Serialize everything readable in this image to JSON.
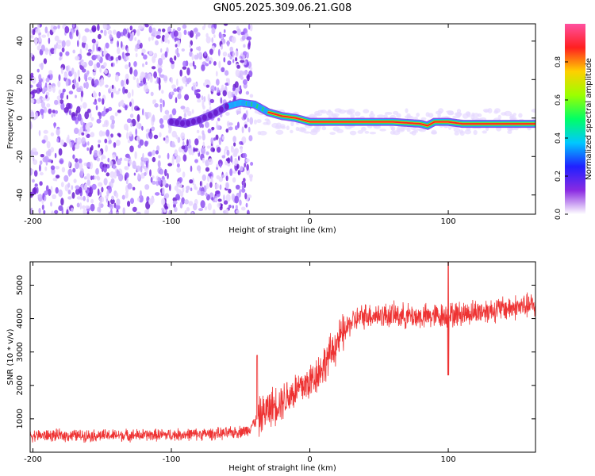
{
  "title": "GN05.2025.309.06.21.G08",
  "chart_data": [
    {
      "type": "heatmap",
      "title": "GN05.2025.309.06.21.G08",
      "xlabel": "Height of straight line (km)",
      "ylabel": "Frequency (Hz)",
      "xlim": [
        -202,
        163
      ],
      "ylim": [
        -50,
        49
      ],
      "xticks": [
        -200,
        -100,
        0,
        100
      ],
      "yticks": [
        -40,
        -20,
        0,
        20,
        40
      ],
      "colorbar": {
        "label": "Normalized spectral amplitude",
        "range": [
          0,
          1
        ],
        "ticks": [
          "0.0",
          "0.2",
          "0.4",
          "0.6",
          "0.8"
        ],
        "colors": [
          "#ffffff",
          "#8a2be2",
          "#2020ff",
          "#00c8ff",
          "#00ff66",
          "#9bff00",
          "#ffd000",
          "#ff2020",
          "#ff50a0"
        ]
      },
      "ridge": {
        "description_points_km_hz": [
          [
            -100,
            -2
          ],
          [
            -90,
            -3
          ],
          [
            -80,
            -1
          ],
          [
            -70,
            2
          ],
          [
            -60,
            6
          ],
          [
            -50,
            8
          ],
          [
            -40,
            7
          ],
          [
            -30,
            3
          ],
          [
            -20,
            1
          ],
          [
            -10,
            0
          ],
          [
            0,
            -2
          ],
          [
            20,
            -2
          ],
          [
            40,
            -2
          ],
          [
            60,
            -2
          ],
          [
            80,
            -3
          ],
          [
            85,
            -4
          ],
          [
            90,
            -2
          ],
          [
            100,
            -2
          ],
          [
            110,
            -3
          ],
          [
            130,
            -3
          ],
          [
            163,
            -3
          ]
        ]
      }
    },
    {
      "type": "line",
      "xlabel": "Height of straight line (km)",
      "ylabel": "SNR (10 * v/v)",
      "xlim": [
        -202,
        163
      ],
      "ylim": [
        0,
        5700
      ],
      "xticks": [
        -200,
        -100,
        0,
        100
      ],
      "yticks": [
        1000,
        2000,
        3000,
        4000,
        5000
      ],
      "color": "#ee3333",
      "trend_points_km_snr": [
        [
          -202,
          500
        ],
        [
          -150,
          500
        ],
        [
          -100,
          520
        ],
        [
          -60,
          560
        ],
        [
          -45,
          650
        ],
        [
          -40,
          900
        ],
        [
          -30,
          1300
        ],
        [
          -20,
          1550
        ],
        [
          -10,
          1850
        ],
        [
          0,
          2100
        ],
        [
          10,
          2600
        ],
        [
          20,
          3300
        ],
        [
          30,
          3900
        ],
        [
          40,
          4100
        ],
        [
          60,
          4100
        ],
        [
          80,
          4050
        ],
        [
          100,
          4100
        ],
        [
          120,
          4200
        ],
        [
          140,
          4300
        ],
        [
          163,
          4400
        ]
      ]
    }
  ]
}
